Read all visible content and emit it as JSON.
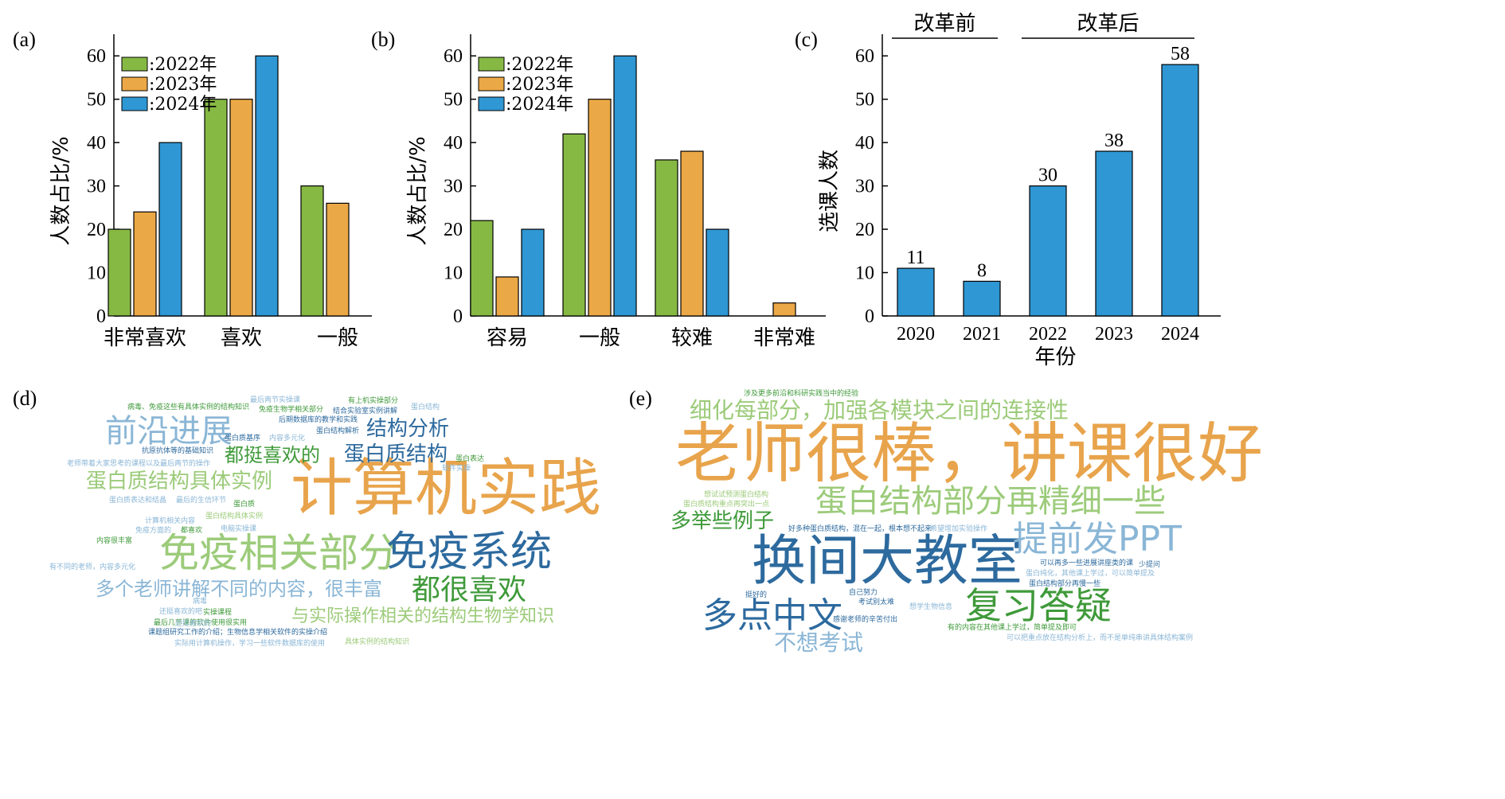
{
  "colors": {
    "green": "#86b944",
    "orange": "#eba846",
    "blue": "#2f97d3",
    "wc_orange": "#e8a44c",
    "wc_lightgreen": "#9ccb7a",
    "wc_green": "#3f9a3a",
    "wc_darkblue": "#2d6a9e",
    "wc_lightblue": "#8ab6d6",
    "wc_small": "#8fbf8f"
  },
  "chart_data": [
    {
      "type": "bar",
      "panel_label": "(a)",
      "ylabel": "人数占比/%",
      "categories": [
        "非常喜欢",
        "喜欢",
        "一般"
      ],
      "series": [
        {
          "name": ":2022年",
          "values": [
            20,
            50,
            30
          ]
        },
        {
          "name": ":2023年",
          "values": [
            24,
            50,
            26
          ]
        },
        {
          "name": ":2024年",
          "values": [
            40,
            60,
            null
          ]
        }
      ],
      "ylim": [
        0,
        65
      ],
      "yticks": [
        0,
        10,
        20,
        30,
        40,
        50,
        60
      ],
      "legend": "top-left"
    },
    {
      "type": "bar",
      "panel_label": "(b)",
      "ylabel": "人数占比/%",
      "categories": [
        "容易",
        "一般",
        "较难",
        "非常难"
      ],
      "series": [
        {
          "name": ":2022年",
          "values": [
            22,
            42,
            36,
            null
          ]
        },
        {
          "name": ":2023年",
          "values": [
            9,
            50,
            38,
            3
          ]
        },
        {
          "name": ":2024年",
          "values": [
            20,
            60,
            20,
            null
          ]
        }
      ],
      "ylim": [
        0,
        65
      ],
      "yticks": [
        0,
        10,
        20,
        30,
        40,
        50,
        60
      ],
      "legend": "top-left"
    },
    {
      "type": "bar",
      "panel_label": "(c)",
      "xlabel": "年份",
      "ylabel": "选课人数",
      "categories": [
        "2020",
        "2021",
        "2022",
        "2023",
        "2024"
      ],
      "values": [
        11,
        8,
        30,
        38,
        58
      ],
      "data_labels": [
        "11",
        "8",
        "30",
        "38",
        "58"
      ],
      "ylim": [
        0,
        65
      ],
      "yticks": [
        0,
        10,
        20,
        30,
        40,
        50,
        60
      ],
      "group_annotations": [
        "改革前",
        "改革后"
      ]
    }
  ],
  "wordclouds": [
    {
      "panel_label": "(d)",
      "words": [
        {
          "text": "计算机实践",
          "size": 78,
          "color": "wc_orange"
        },
        {
          "text": "免疫相关部分",
          "size": 50,
          "color": "wc_lightgreen"
        },
        {
          "text": "免疫系统",
          "size": 52,
          "color": "wc_darkblue"
        },
        {
          "text": "前沿进展",
          "size": 40,
          "color": "wc_lightblue"
        },
        {
          "text": "都很喜欢",
          "size": 36,
          "color": "wc_green"
        },
        {
          "text": "结构分析",
          "size": 26,
          "color": "wc_darkblue"
        },
        {
          "text": "蛋白质结构",
          "size": 26,
          "color": "wc_darkblue"
        },
        {
          "text": "都挺喜欢的",
          "size": 24,
          "color": "wc_green"
        },
        {
          "text": "蛋白质结构具体实例",
          "size": 26,
          "color": "wc_lightgreen"
        },
        {
          "text": "多个老师讲解不同的内容，很丰富",
          "size": 24,
          "color": "wc_lightblue"
        },
        {
          "text": "与实际操作相关的结构生物学知识",
          "size": 22,
          "color": "wc_lightgreen"
        },
        {
          "text": "病毒、免疫这些有具体实例的结构知识",
          "size": 9,
          "color": "wc_green"
        },
        {
          "text": "最后两节实操课",
          "size": 9,
          "color": "wc_lightblue"
        },
        {
          "text": "免疫生物学相关部分",
          "size": 9,
          "color": "wc_green"
        },
        {
          "text": "有上机实操部分",
          "size": 9,
          "color": "wc_green"
        },
        {
          "text": "蛋白结构",
          "size": 9,
          "color": "wc_lightblue"
        },
        {
          "text": "结合实验室实例讲解",
          "size": 9,
          "color": "wc_darkblue"
        },
        {
          "text": "后期数据库的教学和实践",
          "size": 9,
          "color": "wc_darkblue"
        },
        {
          "text": "蛋白结构解析",
          "size": 9,
          "color": "wc_darkblue"
        },
        {
          "text": "蛋白质基序",
          "size": 9,
          "color": "wc_darkblue"
        },
        {
          "text": "内容多元化",
          "size": 9,
          "color": "wc_lightblue"
        },
        {
          "text": "抗原抗体等的基础知识",
          "size": 9,
          "color": "wc_darkblue"
        },
        {
          "text": "老师带着大家思考的课程以及最后两节的操作",
          "size": 9,
          "color": "wc_lightblue"
        },
        {
          "text": "蛋白表达",
          "size": 9,
          "color": "wc_green"
        },
        {
          "text": "软件实操",
          "size": 9,
          "color": "wc_lightblue"
        },
        {
          "text": "蛋白质表达和结晶",
          "size": 9,
          "color": "wc_lightblue"
        },
        {
          "text": "最后的生信环节",
          "size": 9,
          "color": "wc_lightblue"
        },
        {
          "text": "蛋白质",
          "size": 9,
          "color": "wc_green"
        },
        {
          "text": "计算机相关内容",
          "size": 9,
          "color": "wc_lightblue"
        },
        {
          "text": "蛋白结构具体实例",
          "size": 9,
          "color": "wc_lightgreen"
        },
        {
          "text": "免疫方面的",
          "size": 9,
          "color": "wc_lightblue"
        },
        {
          "text": "都喜欢",
          "size": 9,
          "color": "wc_green"
        },
        {
          "text": "电脑实操课",
          "size": 9,
          "color": "wc_lightblue"
        },
        {
          "text": "内容很丰富",
          "size": 9,
          "color": "wc_green"
        },
        {
          "text": "有不同的老师，内容多元化",
          "size": 9,
          "color": "wc_lightblue"
        },
        {
          "text": "病毒",
          "size": 9,
          "color": "wc_lightblue"
        },
        {
          "text": "还挺喜欢的吧",
          "size": 9,
          "color": "wc_lightblue"
        },
        {
          "text": "实操课程",
          "size": 9,
          "color": "wc_green"
        },
        {
          "text": "最后几节课的软件使用很实用",
          "size": 9,
          "color": "wc_green"
        },
        {
          "text": "还挺喜欢的",
          "size": 9,
          "color": "wc_lightblue"
        },
        {
          "text": "课题组研究工作的介绍；生物信息学相关软件的实操介绍",
          "size": 9,
          "color": "wc_darkblue"
        },
        {
          "text": "实际用计算机操作，学习一些软件数据库的使用",
          "size": 9,
          "color": "wc_lightblue"
        },
        {
          "text": "具体实例的结构知识",
          "size": 9,
          "color": "wc_lightgreen"
        }
      ]
    },
    {
      "panel_label": "(e)",
      "words": [
        {
          "text": "老师很棒，讲课很好",
          "size": 82,
          "color": "wc_orange"
        },
        {
          "text": "换间大教室",
          "size": 68,
          "color": "wc_darkblue"
        },
        {
          "text": "蛋白结构部分再精细一些",
          "size": 40,
          "color": "wc_lightgreen"
        },
        {
          "text": "细化每部分，加强各模块之间的连接性",
          "size": 28,
          "color": "wc_lightgreen"
        },
        {
          "text": "提前发PPT",
          "size": 44,
          "color": "wc_lightblue"
        },
        {
          "text": "多举些例子",
          "size": 26,
          "color": "wc_green"
        },
        {
          "text": "多点中文",
          "size": 44,
          "color": "wc_darkblue"
        },
        {
          "text": "复习答疑",
          "size": 46,
          "color": "wc_green"
        },
        {
          "text": "不想考试",
          "size": 28,
          "color": "wc_lightblue"
        },
        {
          "text": "涉及更多前沿和科研实践当中的经验",
          "size": 9,
          "color": "wc_green"
        },
        {
          "text": "想试试预测蛋白结构",
          "size": 9,
          "color": "wc_lightgreen"
        },
        {
          "text": "蛋白质结构重点再突出一点",
          "size": 9,
          "color": "wc_lightgreen"
        },
        {
          "text": "好多种蛋白质结构，混在一起，根本想不起来",
          "size": 9,
          "color": "wc_darkblue"
        },
        {
          "text": "希望增加实验操作",
          "size": 9,
          "color": "wc_lightblue"
        },
        {
          "text": "可以再多一些进展讲座类的课",
          "size": 9,
          "color": "wc_darkblue"
        },
        {
          "text": "少提问",
          "size": 9,
          "color": "wc_darkblue"
        },
        {
          "text": "蛋白纯化，其他课上学过，可以简单提及",
          "size": 9,
          "color": "wc_lightblue"
        },
        {
          "text": "蛋白结构部分再慢一些",
          "size": 9,
          "color": "wc_darkblue"
        },
        {
          "text": "挺好的",
          "size": 9,
          "color": "wc_darkblue"
        },
        {
          "text": "自己努力",
          "size": 9,
          "color": "wc_darkblue"
        },
        {
          "text": "考试别太难",
          "size": 9,
          "color": "wc_darkblue"
        },
        {
          "text": "感谢老师的辛苦付出",
          "size": 9,
          "color": "wc_darkblue"
        },
        {
          "text": "想学生物信息",
          "size": 9,
          "color": "wc_lightblue"
        },
        {
          "text": "有的内容在其他课上学过，简单提及即可",
          "size": 9,
          "color": "wc_green"
        },
        {
          "text": "可以把重点放在结构分析上，而不是单纯串讲具体结构案例",
          "size": 9,
          "color": "wc_lightblue"
        }
      ]
    }
  ]
}
